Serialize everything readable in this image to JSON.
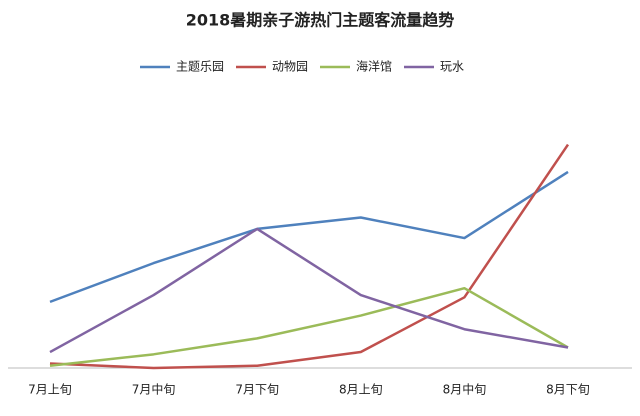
{
  "chart_data": {
    "type": "line",
    "title": "2018暑期亲子游热门主题客流量趋势",
    "categories": [
      "7月上旬",
      "7月中旬",
      "7月下旬",
      "8月上旬",
      "8月中旬",
      "8月下旬"
    ],
    "series": [
      {
        "name": "主题乐园",
        "color": "#4f81bd",
        "values": [
          29,
          46,
          61,
          66,
          57,
          86
        ]
      },
      {
        "name": "动物园",
        "color": "#c0504d",
        "values": [
          2,
          0,
          1,
          7,
          31,
          98
        ]
      },
      {
        "name": "海洋馆",
        "color": "#9bbb59",
        "values": [
          1,
          6,
          13,
          23,
          35,
          9
        ]
      },
      {
        "name": "玩水",
        "color": "#8064a2",
        "values": [
          7,
          32,
          61,
          32,
          17,
          9
        ]
      }
    ],
    "ylim": [
      0,
      100
    ],
    "legend": "top"
  }
}
